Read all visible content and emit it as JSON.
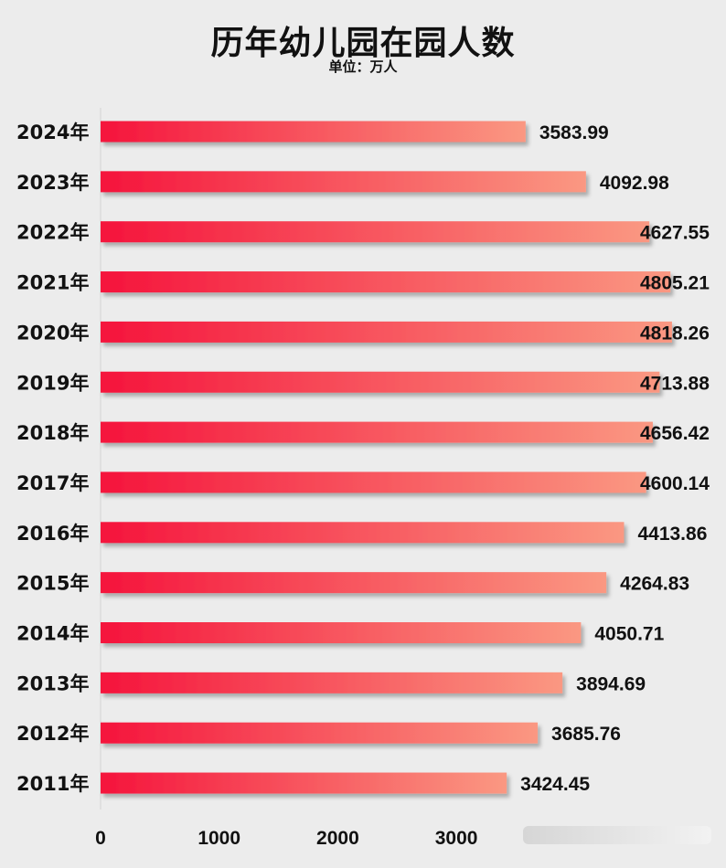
{
  "chart_data": {
    "type": "bar",
    "orientation": "horizontal",
    "title": "历年幼儿园在园人数",
    "subtitle": "单位：万人",
    "categories": [
      "2024年",
      "2023年",
      "2022年",
      "2021年",
      "2020年",
      "2019年",
      "2018年",
      "2017年",
      "2016年",
      "2015年",
      "2014年",
      "2013年",
      "2012年",
      "2011年"
    ],
    "values": [
      3583.99,
      4092.98,
      4627.55,
      4805.21,
      4818.26,
      4713.88,
      4656.42,
      4600.14,
      4413.86,
      4264.83,
      4050.71,
      3894.69,
      3685.76,
      3424.45
    ],
    "value_labels": [
      "3583.99",
      "4092.98",
      "4627.55",
      "4805.21",
      "4818.26",
      "4713.88",
      "4656.42",
      "4600.14",
      "4413.86",
      "4264.83",
      "4050.71",
      "3894.69",
      "3685.76",
      "3424.45"
    ],
    "xticks": [
      0,
      1000,
      2000,
      3000,
      4000,
      5000
    ],
    "xtick_labels": [
      "0",
      "1000",
      "2000",
      "3000",
      "",
      ""
    ],
    "xlim": [
      0,
      5000
    ],
    "xlabel": "",
    "ylabel": "",
    "grid": false,
    "legend": "none",
    "colors": {
      "bar_start": "#f5143c",
      "bar_end": "#fa9882",
      "background": "#ececec",
      "text": "#111111"
    }
  }
}
